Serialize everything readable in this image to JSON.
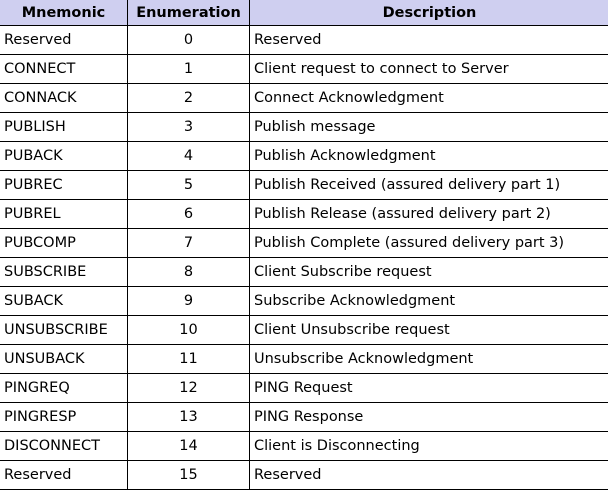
{
  "table": {
    "header": [
      "Mnemonic",
      "Enumeration",
      "Description"
    ],
    "rows": [
      [
        "Reserved",
        0,
        "Reserved"
      ],
      [
        "CONNECT",
        1,
        "Client request to connect to Server"
      ],
      [
        "CONNACK",
        2,
        "Connect Acknowledgment"
      ],
      [
        "PUBLISH",
        3,
        "Publish message"
      ],
      [
        "PUBACK",
        4,
        "Publish Acknowledgment"
      ],
      [
        "PUBREC",
        5,
        "Publish Received (assured delivery part 1)"
      ],
      [
        "PUBREL",
        6,
        "Publish Release (assured delivery part 2)"
      ],
      [
        "PUBCOMP",
        7,
        "Publish Complete (assured delivery part 3)"
      ],
      [
        "SUBSCRIBE",
        8,
        "Client Subscribe request"
      ],
      [
        "SUBACK",
        9,
        "Subscribe Acknowledgment"
      ],
      [
        "UNSUBSCRIBE",
        10,
        "Client Unsubscribe request"
      ],
      [
        "UNSUBACK",
        11,
        "Unsubscribe Acknowledgment"
      ],
      [
        "PINGREQ",
        12,
        "PING Request"
      ],
      [
        "PINGRESP",
        13,
        "PING Response"
      ],
      [
        "DISCONNECT",
        14,
        "Client is Disconnecting"
      ],
      [
        "Reserved",
        15,
        "Reserved"
      ]
    ]
  }
}
